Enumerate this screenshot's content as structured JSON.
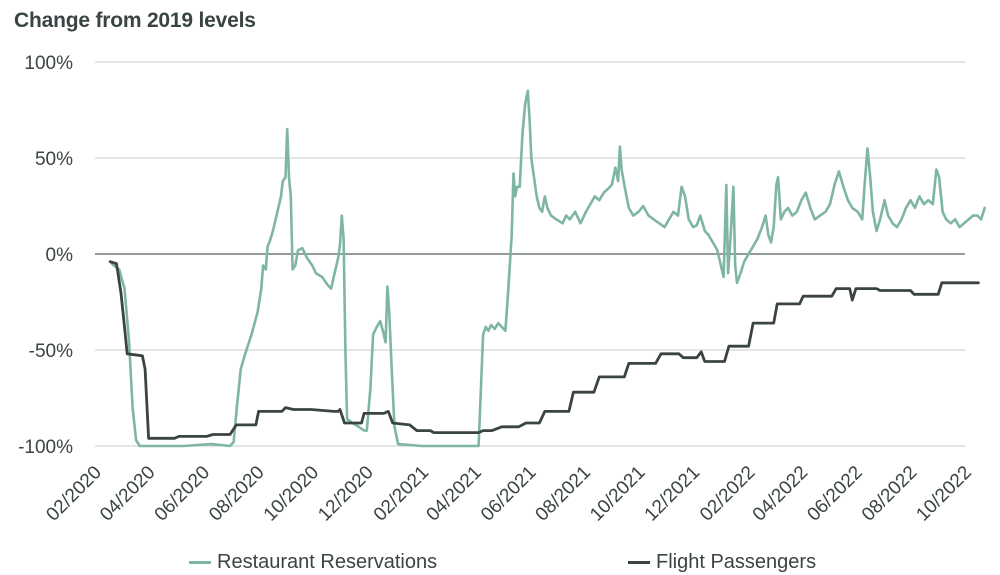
{
  "chart_data": {
    "type": "line",
    "title": "Change from 2019 levels",
    "y_ticks": [
      "100%",
      "50%",
      "0%",
      "-50%",
      "-100%"
    ],
    "ylim": [
      -100,
      100
    ],
    "x_ticks": [
      "02/2020",
      "04/2020",
      "06/2020",
      "08/2020",
      "10/2020",
      "12/2020",
      "02/2021",
      "04/2021",
      "06/2021",
      "08/2021",
      "10/2021",
      "12/2021",
      "02/2022",
      "04/2022",
      "06/2022",
      "08/2022",
      "10/2022"
    ],
    "x_range": [
      "2020-02-01",
      "2022-10-01"
    ],
    "grid": "horizontal",
    "legend_position": "bottom",
    "series": [
      {
        "name": "Restaurant Reservations",
        "color": "#7fb5a5",
        "points": [
          [
            "2020-02-18",
            -4
          ],
          [
            "2020-02-22",
            -6
          ],
          [
            "2020-02-28",
            -8
          ],
          [
            "2020-03-05",
            -18
          ],
          [
            "2020-03-10",
            -45
          ],
          [
            "2020-03-14",
            -80
          ],
          [
            "2020-03-18",
            -97
          ],
          [
            "2020-03-22",
            -100
          ],
          [
            "2020-04-15",
            -100
          ],
          [
            "2020-05-10",
            -100
          ],
          [
            "2020-06-10",
            -99
          ],
          [
            "2020-07-01",
            -100
          ],
          [
            "2020-07-05",
            -98
          ],
          [
            "2020-07-09",
            -78
          ],
          [
            "2020-07-13",
            -60
          ],
          [
            "2020-07-18",
            -52
          ],
          [
            "2020-07-25",
            -42
          ],
          [
            "2020-08-01",
            -30
          ],
          [
            "2020-08-05",
            -18
          ],
          [
            "2020-08-07",
            -6
          ],
          [
            "2020-08-10",
            -8
          ],
          [
            "2020-08-12",
            4
          ],
          [
            "2020-08-14",
            6
          ],
          [
            "2020-08-18",
            12
          ],
          [
            "2020-08-20",
            16
          ],
          [
            "2020-08-24",
            24
          ],
          [
            "2020-08-27",
            30
          ],
          [
            "2020-08-29",
            38
          ],
          [
            "2020-09-01",
            40
          ],
          [
            "2020-09-03",
            65
          ],
          [
            "2020-09-05",
            40
          ],
          [
            "2020-09-07",
            30
          ],
          [
            "2020-09-09",
            -8
          ],
          [
            "2020-09-12",
            -6
          ],
          [
            "2020-09-15",
            2
          ],
          [
            "2020-09-20",
            3
          ],
          [
            "2020-09-25",
            -2
          ],
          [
            "2020-10-01",
            -6
          ],
          [
            "2020-10-05",
            -10
          ],
          [
            "2020-10-12",
            -12
          ],
          [
            "2020-10-18",
            -16
          ],
          [
            "2020-10-22",
            -18
          ],
          [
            "2020-10-26",
            -10
          ],
          [
            "2020-10-30",
            -2
          ],
          [
            "2020-11-01",
            5
          ],
          [
            "2020-11-03",
            20
          ],
          [
            "2020-11-05",
            8
          ],
          [
            "2020-11-07",
            -50
          ],
          [
            "2020-11-09",
            -86
          ],
          [
            "2020-11-15",
            -88
          ],
          [
            "2020-11-22",
            -90
          ],
          [
            "2020-11-28",
            -92
          ],
          [
            "2020-12-01",
            -92
          ],
          [
            "2020-12-05",
            -70
          ],
          [
            "2020-12-08",
            -42
          ],
          [
            "2020-12-12",
            -38
          ],
          [
            "2020-12-16",
            -35
          ],
          [
            "2020-12-19",
            -40
          ],
          [
            "2020-12-22",
            -46
          ],
          [
            "2020-12-24",
            -17
          ],
          [
            "2020-12-26",
            -30
          ],
          [
            "2020-12-29",
            -62
          ],
          [
            "2021-01-01",
            -90
          ],
          [
            "2021-01-05",
            -99
          ],
          [
            "2021-02-01",
            -100
          ],
          [
            "2021-03-01",
            -100
          ],
          [
            "2021-04-05",
            -100
          ],
          [
            "2021-04-10",
            -42
          ],
          [
            "2021-04-13",
            -38
          ],
          [
            "2021-04-16",
            -40
          ],
          [
            "2021-04-19",
            -37
          ],
          [
            "2021-04-23",
            -39
          ],
          [
            "2021-04-27",
            -36
          ],
          [
            "2021-05-01",
            -38
          ],
          [
            "2021-05-05",
            -40
          ],
          [
            "2021-05-08",
            -20
          ],
          [
            "2021-05-12",
            10
          ],
          [
            "2021-05-14",
            42
          ],
          [
            "2021-05-16",
            30
          ],
          [
            "2021-05-18",
            35
          ],
          [
            "2021-05-21",
            35
          ],
          [
            "2021-05-24",
            62
          ],
          [
            "2021-05-27",
            78
          ],
          [
            "2021-05-30",
            85
          ],
          [
            "2021-06-01",
            70
          ],
          [
            "2021-06-03",
            50
          ],
          [
            "2021-06-06",
            40
          ],
          [
            "2021-06-09",
            30
          ],
          [
            "2021-06-12",
            24
          ],
          [
            "2021-06-15",
            22
          ],
          [
            "2021-06-18",
            30
          ],
          [
            "2021-06-21",
            24
          ],
          [
            "2021-06-25",
            20
          ],
          [
            "2021-07-01",
            18
          ],
          [
            "2021-07-08",
            16
          ],
          [
            "2021-07-12",
            20
          ],
          [
            "2021-07-16",
            18
          ],
          [
            "2021-07-22",
            22
          ],
          [
            "2021-07-28",
            16
          ],
          [
            "2021-08-03",
            22
          ],
          [
            "2021-08-08",
            26
          ],
          [
            "2021-08-13",
            30
          ],
          [
            "2021-08-18",
            28
          ],
          [
            "2021-08-23",
            32
          ],
          [
            "2021-08-28",
            34
          ],
          [
            "2021-09-01",
            36
          ],
          [
            "2021-09-05",
            45
          ],
          [
            "2021-09-08",
            38
          ],
          [
            "2021-09-10",
            56
          ],
          [
            "2021-09-12",
            44
          ],
          [
            "2021-09-15",
            36
          ],
          [
            "2021-09-20",
            24
          ],
          [
            "2021-09-25",
            20
          ],
          [
            "2021-10-01",
            22
          ],
          [
            "2021-10-06",
            25
          ],
          [
            "2021-10-12",
            20
          ],
          [
            "2021-10-18",
            18
          ],
          [
            "2021-10-24",
            16
          ],
          [
            "2021-10-30",
            14
          ],
          [
            "2021-11-04",
            18
          ],
          [
            "2021-11-09",
            22
          ],
          [
            "2021-11-14",
            20
          ],
          [
            "2021-11-18",
            35
          ],
          [
            "2021-11-22",
            30
          ],
          [
            "2021-11-26",
            18
          ],
          [
            "2021-12-01",
            14
          ],
          [
            "2021-12-05",
            15
          ],
          [
            "2021-12-09",
            20
          ],
          [
            "2021-12-14",
            12
          ],
          [
            "2021-12-18",
            10
          ],
          [
            "2021-12-23",
            6
          ],
          [
            "2021-12-28",
            2
          ],
          [
            "2022-01-01",
            -6
          ],
          [
            "2022-01-04",
            -12
          ],
          [
            "2022-01-07",
            36
          ],
          [
            "2022-01-09",
            -10
          ],
          [
            "2022-01-12",
            10
          ],
          [
            "2022-01-15",
            35
          ],
          [
            "2022-01-17",
            -6
          ],
          [
            "2022-01-19",
            -15
          ],
          [
            "2022-01-23",
            -10
          ],
          [
            "2022-01-27",
            -4
          ],
          [
            "2022-02-01",
            0
          ],
          [
            "2022-02-06",
            4
          ],
          [
            "2022-02-11",
            8
          ],
          [
            "2022-02-16",
            14
          ],
          [
            "2022-02-20",
            20
          ],
          [
            "2022-02-23",
            10
          ],
          [
            "2022-02-26",
            6
          ],
          [
            "2022-03-01",
            14
          ],
          [
            "2022-03-04",
            36
          ],
          [
            "2022-03-06",
            40
          ],
          [
            "2022-03-09",
            18
          ],
          [
            "2022-03-13",
            22
          ],
          [
            "2022-03-17",
            24
          ],
          [
            "2022-03-22",
            20
          ],
          [
            "2022-03-27",
            22
          ],
          [
            "2022-04-01",
            28
          ],
          [
            "2022-04-06",
            32
          ],
          [
            "2022-04-11",
            24
          ],
          [
            "2022-04-16",
            18
          ],
          [
            "2022-04-22",
            20
          ],
          [
            "2022-04-28",
            22
          ],
          [
            "2022-05-03",
            26
          ],
          [
            "2022-05-08",
            36
          ],
          [
            "2022-05-13",
            43
          ],
          [
            "2022-05-18",
            35
          ],
          [
            "2022-05-23",
            28
          ],
          [
            "2022-05-28",
            24
          ],
          [
            "2022-06-03",
            22
          ],
          [
            "2022-06-08",
            18
          ],
          [
            "2022-06-11",
            38
          ],
          [
            "2022-06-14",
            55
          ],
          [
            "2022-06-17",
            40
          ],
          [
            "2022-06-20",
            22
          ],
          [
            "2022-06-24",
            12
          ],
          [
            "2022-06-28",
            18
          ],
          [
            "2022-07-03",
            28
          ],
          [
            "2022-07-07",
            20
          ],
          [
            "2022-07-12",
            16
          ],
          [
            "2022-07-17",
            14
          ],
          [
            "2022-07-22",
            18
          ],
          [
            "2022-07-27",
            24
          ],
          [
            "2022-08-01",
            28
          ],
          [
            "2022-08-06",
            24
          ],
          [
            "2022-08-11",
            30
          ],
          [
            "2022-08-16",
            26
          ],
          [
            "2022-08-21",
            28
          ],
          [
            "2022-08-26",
            26
          ],
          [
            "2022-08-30",
            44
          ],
          [
            "2022-09-02",
            40
          ],
          [
            "2022-09-06",
            22
          ],
          [
            "2022-09-10",
            18
          ],
          [
            "2022-09-15",
            16
          ],
          [
            "2022-09-20",
            18
          ],
          [
            "2022-09-25",
            14
          ],
          [
            "2022-09-30",
            16
          ],
          [
            "2022-10-05",
            18
          ],
          [
            "2022-10-10",
            20
          ],
          [
            "2022-10-15",
            20
          ],
          [
            "2022-10-19",
            18
          ],
          [
            "2022-10-23",
            24
          ]
        ]
      },
      {
        "name": "Flight Passengers",
        "color": "#3b4444",
        "points": [
          [
            "2020-02-18",
            -4
          ],
          [
            "2020-02-25",
            -5
          ],
          [
            "2020-03-01",
            -20
          ],
          [
            "2020-03-05",
            -38
          ],
          [
            "2020-03-08",
            -52
          ],
          [
            "2020-03-25",
            -53
          ],
          [
            "2020-03-28",
            -60
          ],
          [
            "2020-04-01",
            -96
          ],
          [
            "2020-04-30",
            -96
          ],
          [
            "2020-05-05",
            -95
          ],
          [
            "2020-06-05",
            -95
          ],
          [
            "2020-06-12",
            -94
          ],
          [
            "2020-07-01",
            -94
          ],
          [
            "2020-07-08",
            -89
          ],
          [
            "2020-07-30",
            -89
          ],
          [
            "2020-08-02",
            -82
          ],
          [
            "2020-08-28",
            -82
          ],
          [
            "2020-09-01",
            -80
          ],
          [
            "2020-09-10",
            -81
          ],
          [
            "2020-09-30",
            -81
          ],
          [
            "2020-10-25",
            -82
          ],
          [
            "2020-10-30",
            -82
          ],
          [
            "2020-11-01",
            -81
          ],
          [
            "2020-11-06",
            -88
          ],
          [
            "2020-11-25",
            -88
          ],
          [
            "2020-11-28",
            -83
          ],
          [
            "2020-12-20",
            -83
          ],
          [
            "2020-12-25",
            -82
          ],
          [
            "2020-12-30",
            -88
          ],
          [
            "2021-01-18",
            -89
          ],
          [
            "2021-01-26",
            -92
          ],
          [
            "2021-02-10",
            -92
          ],
          [
            "2021-02-14",
            -93
          ],
          [
            "2021-03-15",
            -93
          ],
          [
            "2021-04-01",
            -93
          ],
          [
            "2021-04-05",
            -93
          ],
          [
            "2021-04-10",
            -92
          ],
          [
            "2021-04-20",
            -92
          ],
          [
            "2021-05-01",
            -90
          ],
          [
            "2021-05-20",
            -90
          ],
          [
            "2021-05-28",
            -88
          ],
          [
            "2021-06-12",
            -88
          ],
          [
            "2021-06-18",
            -82
          ],
          [
            "2021-07-15",
            -82
          ],
          [
            "2021-07-20",
            -72
          ],
          [
            "2021-08-12",
            -72
          ],
          [
            "2021-08-18",
            -64
          ],
          [
            "2021-09-15",
            -64
          ],
          [
            "2021-09-20",
            -57
          ],
          [
            "2021-10-20",
            -57
          ],
          [
            "2021-10-26",
            -52
          ],
          [
            "2021-11-15",
            -52
          ],
          [
            "2021-11-20",
            -54
          ],
          [
            "2021-12-05",
            -54
          ],
          [
            "2021-12-10",
            -51
          ],
          [
            "2021-12-14",
            -56
          ],
          [
            "2022-01-05",
            -56
          ],
          [
            "2022-01-10",
            -48
          ],
          [
            "2022-02-01",
            -48
          ],
          [
            "2022-02-06",
            -36
          ],
          [
            "2022-03-01",
            -36
          ],
          [
            "2022-03-05",
            -26
          ],
          [
            "2022-03-30",
            -26
          ],
          [
            "2022-04-03",
            -22
          ],
          [
            "2022-05-05",
            -22
          ],
          [
            "2022-05-10",
            -18
          ],
          [
            "2022-05-25",
            -18
          ],
          [
            "2022-05-28",
            -24
          ],
          [
            "2022-06-01",
            -18
          ],
          [
            "2022-06-24",
            -18
          ],
          [
            "2022-06-28",
            -19
          ],
          [
            "2022-08-01",
            -19
          ],
          [
            "2022-08-05",
            -21
          ],
          [
            "2022-09-01",
            -21
          ],
          [
            "2022-09-05",
            -15
          ],
          [
            "2022-10-01",
            -15
          ],
          [
            "2022-10-16",
            -15
          ]
        ]
      }
    ]
  }
}
